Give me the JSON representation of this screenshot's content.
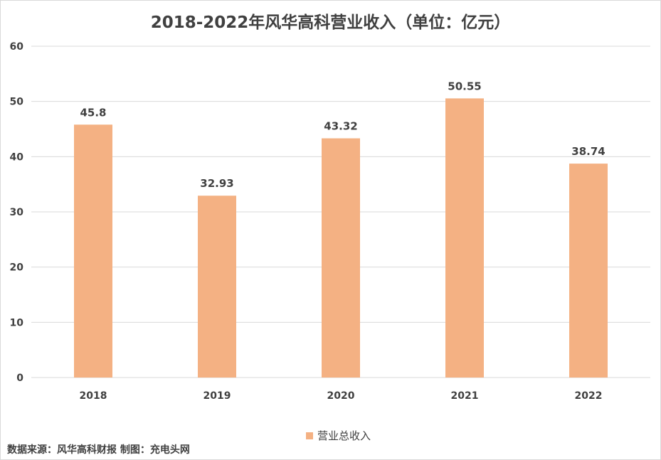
{
  "title": "2018-2022年风华高科营业收入（单位：亿元）",
  "source_note": "数据来源：风华高科财报 制图：充电头网",
  "colors": {
    "bar": "#f4b183",
    "grid": "#d9d9d9",
    "text": "#404040"
  },
  "chart_data": {
    "type": "bar",
    "title": "2018-2022年风华高科营业收入（单位：亿元）",
    "categories": [
      "2018",
      "2019",
      "2020",
      "2021",
      "2022"
    ],
    "series": [
      {
        "name": "营业总收入",
        "values": [
          45.8,
          32.93,
          43.32,
          50.55,
          38.74
        ]
      }
    ],
    "data_labels": [
      "45.8",
      "32.93",
      "43.32",
      "50.55",
      "38.74"
    ],
    "y_ticks": [
      0,
      10,
      20,
      30,
      40,
      50,
      60
    ],
    "ylim": [
      0,
      60
    ],
    "grid": true,
    "legend_position": "bottom"
  }
}
